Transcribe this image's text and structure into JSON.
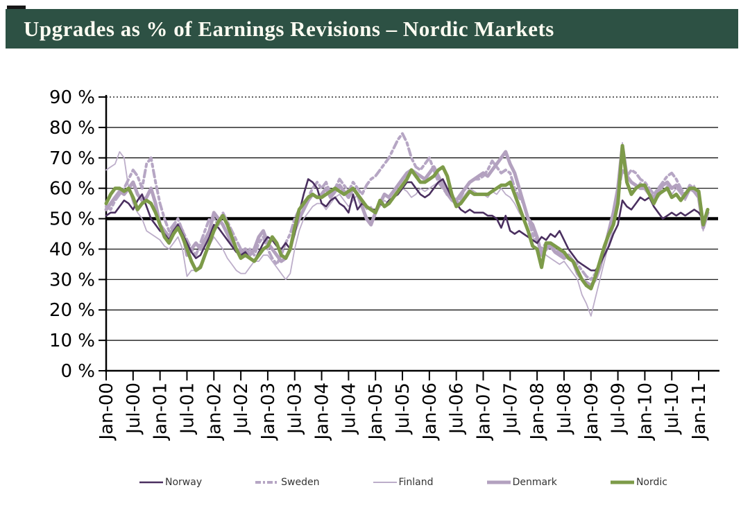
{
  "header": {
    "title": "Upgrades as % of Earnings Revisions – Nordic Markets",
    "background_color": "#2d5144",
    "text_color": "#fdfcf2"
  },
  "chart_data": {
    "type": "line",
    "title": "Upgrades as % of Earnings Revisions – Nordic Markets",
    "ylabel": "",
    "xlabel": "",
    "ylim": [
      0,
      90
    ],
    "grid": "horizontal gridlines every 10%, top (90%) dotted",
    "legend_position": "bottom",
    "reference_line": {
      "value": 50,
      "color": "#000000",
      "width": 4.5
    },
    "x_start": "Jan-00",
    "x_end": "Mar-11",
    "x_frequency": "monthly",
    "x_tick_labels": [
      "Jan-00",
      "Jul-00",
      "Jan-01",
      "Jul-01",
      "Jan-02",
      "Jul-02",
      "Jan-03",
      "Jul-03",
      "Jan-04",
      "Jul-04",
      "Jan-05",
      "Jul-05",
      "Jan-06",
      "Jul-06",
      "Jan-07",
      "Jul-07",
      "Jan-08",
      "Jul-08",
      "Jan-09",
      "Jul-09",
      "Jan-10",
      "Jul-10",
      "Jan-11"
    ],
    "y_tick_labels": [
      "0 %",
      "10 %",
      "20 %",
      "30 %",
      "40 %",
      "50 %",
      "60 %",
      "70 %",
      "80 %",
      "90 %"
    ],
    "series": [
      {
        "name": "Norway",
        "color": "#4a2f5f",
        "width": 2.6,
        "dash": "",
        "values": [
          51,
          52,
          52,
          54,
          56,
          55,
          53,
          56,
          58,
          54,
          50,
          48,
          46,
          45,
          43,
          46,
          48,
          45,
          42,
          39,
          37,
          38,
          41,
          44,
          48,
          47,
          45,
          43,
          41,
          39,
          38,
          39,
          37,
          36,
          39,
          42,
          44,
          43,
          41,
          40,
          42,
          40,
          45,
          52,
          58,
          63,
          62,
          60,
          55,
          54,
          56,
          57,
          55,
          54,
          52,
          58,
          53,
          55,
          54,
          53,
          53,
          55,
          54,
          56,
          57,
          58,
          60,
          62,
          62,
          60,
          58,
          57,
          58,
          60,
          62,
          63,
          60,
          57,
          55,
          53,
          52,
          53,
          52,
          52,
          52,
          51,
          51,
          50,
          47,
          51,
          46,
          45,
          46,
          45,
          44,
          43,
          42,
          44,
          43,
          45,
          44,
          46,
          43,
          40,
          38,
          36,
          35,
          34,
          33,
          33,
          35,
          38,
          41,
          45,
          48,
          56,
          54,
          53,
          55,
          57,
          56,
          57,
          54,
          52,
          50,
          51,
          52,
          51,
          52,
          51,
          52,
          53,
          52,
          50,
          52
        ]
      },
      {
        "name": "Sweden",
        "color": "#b6a6c4",
        "width": 4,
        "dash": "10 5 4 5",
        "values": [
          54,
          53,
          56,
          58,
          60,
          63,
          66,
          64,
          60,
          68,
          70,
          62,
          55,
          50,
          46,
          48,
          50,
          46,
          43,
          40,
          38,
          42,
          46,
          50,
          50,
          48,
          52,
          49,
          46,
          43,
          40,
          38,
          40,
          38,
          42,
          44,
          40,
          37,
          35,
          38,
          42,
          45,
          50,
          53,
          55,
          57,
          60,
          62,
          60,
          62,
          58,
          60,
          63,
          61,
          59,
          62,
          60,
          58,
          61,
          63,
          64,
          66,
          68,
          70,
          73,
          76,
          78,
          75,
          70,
          67,
          66,
          68,
          70,
          66,
          62,
          60,
          58,
          56,
          55,
          57,
          60,
          62,
          63,
          63,
          64,
          66,
          69,
          67,
          65,
          66,
          65,
          60,
          57,
          55,
          50,
          45,
          43,
          40,
          42,
          41,
          40,
          39,
          38,
          37,
          36,
          35,
          33,
          31,
          30,
          32,
          36,
          40,
          45,
          50,
          58,
          66,
          64,
          66,
          65,
          63,
          62,
          60,
          58,
          60,
          62,
          64,
          65,
          63,
          60,
          58,
          61,
          60,
          58,
          48,
          52
        ]
      },
      {
        "name": "Finland",
        "color": "#bcadc9",
        "width": 1.8,
        "dash": "",
        "values": [
          66,
          67,
          68,
          72,
          70,
          60,
          55,
          52,
          50,
          46,
          45,
          44,
          43,
          41,
          40,
          42,
          44,
          40,
          31,
          33,
          33,
          35,
          38,
          41,
          44,
          42,
          40,
          37,
          35,
          33,
          32,
          32,
          34,
          36,
          36,
          38,
          38,
          36,
          34,
          32,
          30,
          32,
          40,
          46,
          50,
          52,
          54,
          55,
          55,
          53,
          55,
          57,
          58,
          56,
          54,
          56,
          58,
          55,
          53,
          54,
          52,
          54,
          56,
          55,
          57,
          58,
          60,
          59,
          57,
          58,
          60,
          59,
          60,
          61,
          62,
          60,
          58,
          56,
          54,
          56,
          58,
          60,
          59,
          58,
          58,
          57,
          59,
          58,
          60,
          58,
          57,
          55,
          52,
          50,
          46,
          44,
          42,
          40,
          38,
          37,
          36,
          35,
          36,
          34,
          32,
          30,
          25,
          22,
          18,
          24,
          30,
          36,
          42,
          47,
          60,
          75,
          63,
          58,
          60,
          62,
          60,
          58,
          56,
          57,
          59,
          61,
          58,
          60,
          58,
          56,
          59,
          61,
          58,
          46,
          53
        ]
      },
      {
        "name": "Denmark",
        "color": "#b3a1bf",
        "width": 5,
        "dash": "",
        "values": [
          53,
          55,
          57,
          59,
          58,
          60,
          62,
          58,
          56,
          57,
          60,
          55,
          48,
          46,
          44,
          47,
          48,
          46,
          38,
          40,
          42,
          40,
          43,
          46,
          52,
          50,
          48,
          45,
          42,
          40,
          39,
          40,
          38,
          40,
          44,
          46,
          42,
          40,
          38,
          36,
          37,
          40,
          46,
          50,
          53,
          56,
          58,
          57,
          58,
          60,
          57,
          59,
          61,
          59,
          57,
          60,
          58,
          54,
          50,
          48,
          52,
          55,
          58,
          57,
          59,
          61,
          63,
          65,
          66,
          65,
          64,
          63,
          65,
          67,
          64,
          61,
          58,
          57,
          56,
          58,
          60,
          62,
          63,
          64,
          65,
          64,
          66,
          68,
          70,
          72,
          68,
          65,
          60,
          55,
          50,
          48,
          44,
          38,
          40,
          41,
          39,
          38,
          37,
          38,
          36,
          32,
          30,
          29,
          28,
          30,
          34,
          40,
          46,
          52,
          60,
          74,
          64,
          62,
          61,
          60,
          60,
          58,
          57,
          59,
          61,
          62,
          60,
          61,
          59,
          57,
          60,
          59,
          57,
          47,
          52
        ]
      },
      {
        "name": "Nordic",
        "color": "#7d9b49",
        "width": 5,
        "dash": "",
        "values": [
          55,
          58,
          60,
          60,
          59,
          60,
          57,
          53,
          55,
          56,
          55,
          52,
          48,
          44,
          42,
          45,
          47,
          44,
          40,
          36,
          33,
          34,
          38,
          42,
          46,
          49,
          51,
          48,
          44,
          40,
          37,
          38,
          37,
          36,
          38,
          40,
          41,
          44,
          42,
          38,
          37,
          40,
          47,
          53,
          55,
          57,
          58,
          57,
          57,
          58,
          59,
          60,
          59,
          58,
          59,
          60,
          58,
          56,
          54,
          53,
          52,
          56,
          54,
          55,
          57,
          59,
          61,
          63,
          66,
          64,
          62,
          62,
          63,
          64,
          66,
          67,
          64,
          58,
          54,
          55,
          57,
          59,
          58,
          58,
          58,
          58,
          59,
          60,
          61,
          61,
          62,
          58,
          54,
          50,
          46,
          41,
          40,
          34,
          42,
          42,
          41,
          40,
          39,
          37,
          36,
          33,
          30,
          28,
          27,
          31,
          36,
          41,
          45,
          48,
          55,
          74,
          62,
          58,
          60,
          61,
          61,
          58,
          55,
          58,
          59,
          60,
          57,
          58,
          56,
          58,
          60,
          60,
          59,
          48,
          53
        ]
      }
    ]
  },
  "legend": {
    "items": [
      {
        "label": "Norway"
      },
      {
        "label": "Sweden"
      },
      {
        "label": "Finland"
      },
      {
        "label": "Denmark"
      },
      {
        "label": "Nordic"
      }
    ]
  }
}
